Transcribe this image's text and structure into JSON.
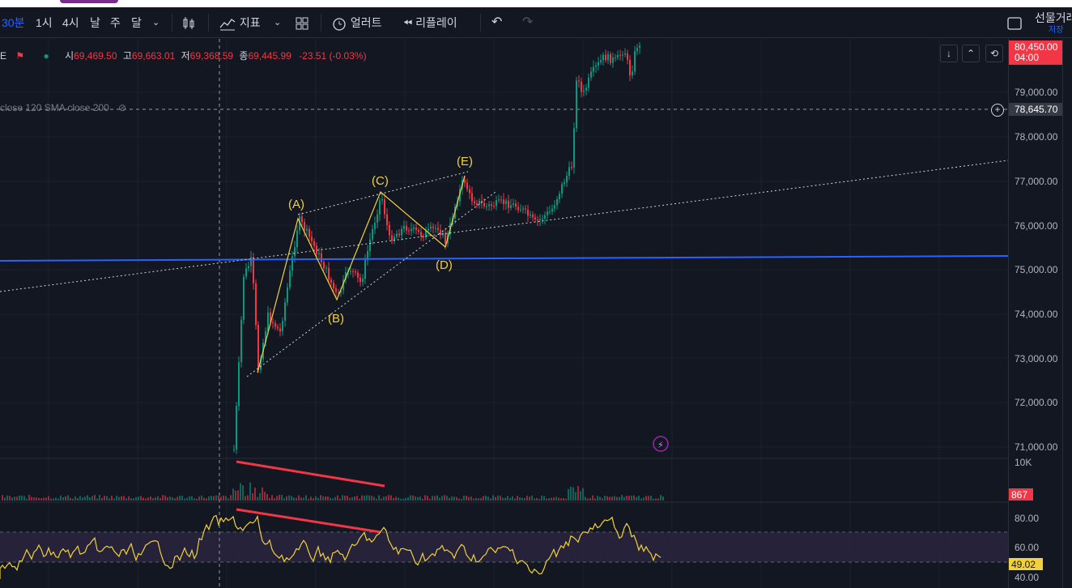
{
  "toolbar": {
    "timeframes": [
      "30분",
      "1시",
      "4시",
      "날",
      "주",
      "달"
    ],
    "indicators_label": "지표",
    "alerts_label": "얼러트",
    "replay_label": "리플레이",
    "futures_label": "선물거래",
    "save_label": "저장"
  },
  "legend": {
    "symbol_fragment": "E",
    "open_prefix": "시",
    "open": "69,469.50",
    "high_prefix": "고",
    "high": "69,663.01",
    "low_prefix": "저",
    "low": "69,368.59",
    "close_prefix": "종",
    "close": "69,445.99",
    "change": "-23.51 (-0.03%)",
    "indicator_line": "close 120 SMA close 200"
  },
  "price_axis": {
    "ticks": [
      "79,000.00",
      "78,000.00",
      "77,000.00",
      "76,000.00",
      "75,000.00",
      "74,000.00",
      "73,000.00",
      "72,000.00",
      "71,000.00"
    ],
    "current_price": "80,450.00",
    "countdown": "04:00",
    "crosshair_price": "78,645.70",
    "volume_tick": "10K",
    "volume_value": "867",
    "rsi_ticks": [
      "80.00",
      "60.00",
      "40.00"
    ],
    "rsi_value": "49.02"
  },
  "annotations": {
    "A": "(A)",
    "B": "(B)",
    "C": "(C)",
    "D": "(D)",
    "E": "(E)"
  },
  "colors": {
    "background": "#131722",
    "up": "#089981",
    "down": "#f23645",
    "wave": "#f2d13a",
    "blue_line": "#2962ff",
    "rsi_line": "#f2d13a",
    "rsi_band": "#2a2540"
  }
}
